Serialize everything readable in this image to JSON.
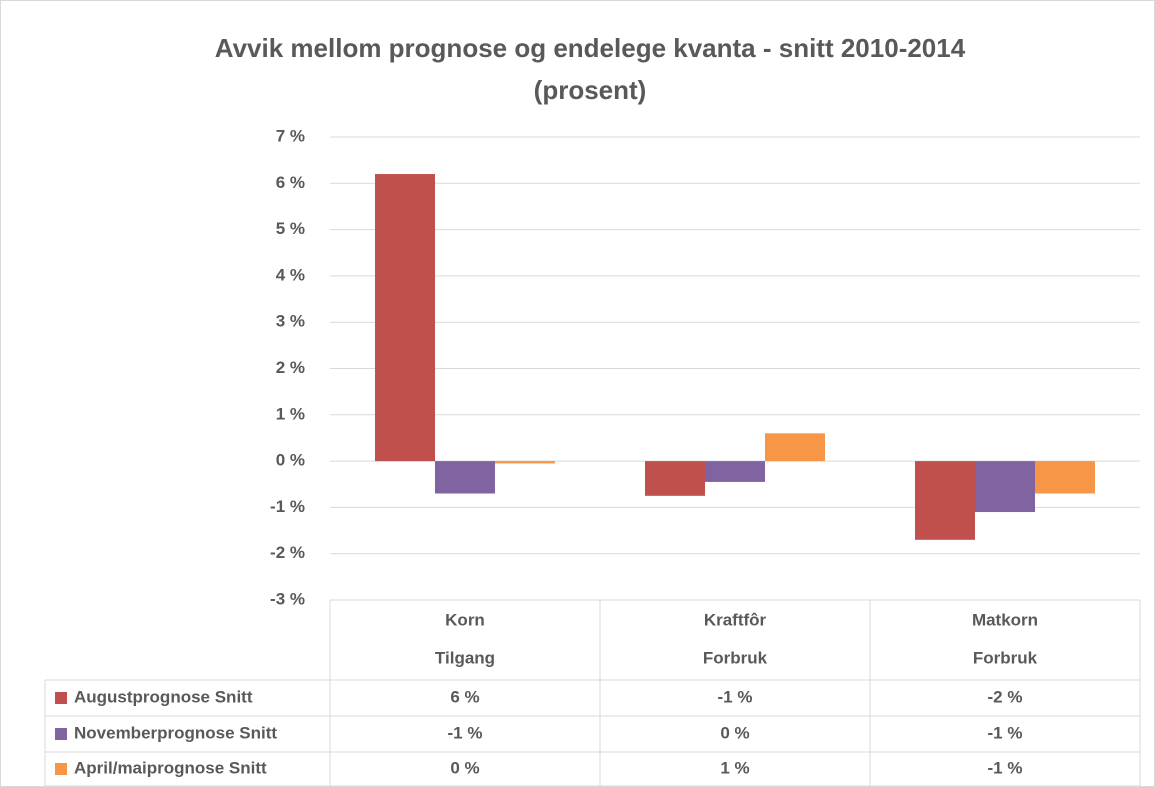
{
  "chart_data": {
    "type": "bar",
    "title": [
      "Avvik mellom prognose og endelege kvanta - snitt 2010-2014",
      "(prosent)"
    ],
    "categories": [
      [
        "Korn",
        "Tilgang"
      ],
      [
        "Kraftfôr",
        "Forbruk"
      ],
      [
        "Matkorn",
        "Forbruk"
      ]
    ],
    "series": [
      {
        "name": "Augustprognose Snitt",
        "color": "#c0504d",
        "values": [
          6.2,
          -0.75,
          -1.7
        ],
        "value_labels": [
          "6 %",
          "-1 %",
          "-2 %"
        ]
      },
      {
        "name": "Novemberprognose Snitt",
        "color": "#8064a2",
        "values": [
          -0.7,
          -0.45,
          -1.1
        ],
        "value_labels": [
          "-1 %",
          "0 %",
          "-1 %"
        ]
      },
      {
        "name": "April/maiprognose Snitt",
        "color": "#f79646",
        "values": [
          -0.05,
          0.6,
          -0.7
        ],
        "value_labels": [
          "0 %",
          "1 %",
          "-1 %"
        ]
      }
    ],
    "ylim": [
      -3,
      7
    ],
    "yticks": [
      {
        "value": -3,
        "label": "-3 %"
      },
      {
        "value": -2,
        "label": "-2 %"
      },
      {
        "value": -1,
        "label": "-1 %"
      },
      {
        "value": 0,
        "label": "0 %"
      },
      {
        "value": 1,
        "label": "1 %"
      },
      {
        "value": 2,
        "label": "2 %"
      },
      {
        "value": 3,
        "label": "3 %"
      },
      {
        "value": 4,
        "label": "4 %"
      },
      {
        "value": 5,
        "label": "5 %"
      },
      {
        "value": 6,
        "label": "6 %"
      },
      {
        "value": 7,
        "label": "7 %"
      }
    ],
    "grid": true
  }
}
